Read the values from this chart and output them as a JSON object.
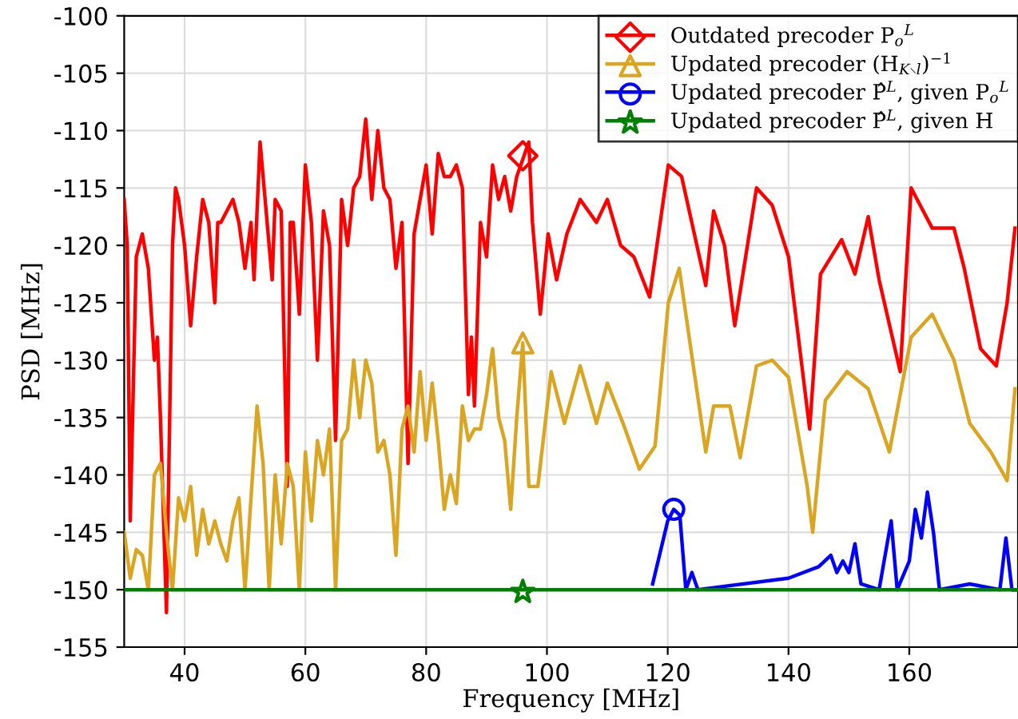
{
  "chart_data": {
    "type": "line",
    "xlabel": "Frequency [MHz]",
    "ylabel": "PSD [MHz]",
    "xlim": [
      30,
      178
    ],
    "ylim": [
      -155,
      -100
    ],
    "xticks": [
      40,
      60,
      80,
      100,
      120,
      140,
      160
    ],
    "yticks": [
      -155,
      -150,
      -145,
      -140,
      -135,
      -130,
      -125,
      -120,
      -115,
      -110,
      -105,
      -100
    ],
    "grid": true,
    "legend": "top right",
    "line_style": "solid",
    "series": [
      {
        "name": "Outdated precoder P$_{o}$$^{L}$",
        "color": "#ff0000",
        "x": [
          30,
          30.5,
          31,
          32,
          33,
          34,
          35,
          35.5,
          36,
          37,
          38,
          38.5,
          39,
          40,
          41,
          42,
          43,
          44,
          45,
          45.5,
          46,
          47,
          48,
          49,
          50,
          51,
          51.5,
          52.5,
          53.5,
          54.5,
          55,
          56,
          57,
          57.5,
          58,
          59,
          60,
          61,
          62,
          63,
          64,
          65,
          66,
          67,
          68,
          69,
          70,
          71,
          72,
          73,
          74,
          75,
          76,
          77,
          78,
          79,
          80,
          81,
          82,
          83,
          84,
          85,
          86,
          87,
          87.5,
          88,
          89,
          90,
          91,
          92,
          93,
          94,
          95,
          96,
          97,
          97.6,
          98.9,
          100.2,
          101.6,
          103.3,
          105.5,
          108.2,
          110,
          112.2,
          114.4,
          117,
          120.1,
          122.3,
          126.3,
          127.6,
          129.4,
          131.1,
          134.7,
          137.3,
          140,
          143.5,
          145.3,
          148.8,
          151,
          153.2,
          155,
          158.5,
          160.3,
          163.8,
          167.4,
          169.1,
          171.8,
          174.4,
          176.2,
          177.5
        ],
        "values": [
          -116,
          -120,
          -144,
          -121,
          -119,
          -122,
          -130,
          -128,
          -135,
          -152,
          -120,
          -115,
          -116,
          -120,
          -127,
          -121,
          -116,
          -118,
          -125,
          -118,
          -118,
          -117,
          -116,
          -118,
          -122,
          -118,
          -123,
          -111,
          -117,
          -123,
          -116,
          -117,
          -141,
          -118,
          -118,
          -126,
          -113,
          -118,
          -130,
          -117,
          -120,
          -137,
          -116,
          -120,
          -115,
          -114,
          -109,
          -116,
          -110,
          -115,
          -116,
          -122,
          -118,
          -139,
          -119,
          -116,
          -113,
          -119,
          -112,
          -114,
          -114,
          -113,
          -115,
          -133,
          -128,
          -134,
          -118,
          -121,
          -113,
          -116,
          -114,
          -117,
          -114,
          -112.5,
          -111,
          -118,
          -126,
          -119,
          -123,
          -119,
          -116,
          -118,
          -116,
          -120,
          -121,
          -124.5,
          -113,
          -114,
          -123.5,
          -117,
          -120,
          -127,
          -115,
          -116.5,
          -121,
          -136,
          -122.5,
          -119.5,
          -122.5,
          -117.5,
          -123,
          -131,
          -115,
          -118.5,
          -118.5,
          -122,
          -129,
          -130.5,
          -125,
          -118.5
        ]
      },
      {
        "name": "Updated precoder (H$_{K∖l}$)$^{−1}$",
        "color": "#daa520",
        "x": [
          30,
          31,
          32,
          33,
          34,
          35,
          36,
          37,
          38,
          39,
          40,
          41,
          42,
          43,
          44,
          45,
          46,
          47,
          48,
          49,
          50,
          52,
          53,
          54,
          55,
          56,
          57,
          58,
          59,
          60,
          61,
          62,
          63,
          64,
          65,
          66,
          67,
          68,
          69,
          70,
          71,
          72,
          73,
          74,
          75,
          76,
          77,
          78,
          79,
          80,
          81,
          82,
          83,
          84,
          85,
          86,
          87,
          88,
          89,
          90,
          91,
          92,
          93,
          94,
          95,
          96,
          97,
          98.5,
          100.7,
          102.9,
          105.5,
          108.2,
          110,
          112.6,
          115.3,
          117.9,
          120.1,
          121.9,
          124.1,
          126.3,
          127.6,
          130.3,
          132,
          134.7,
          137.3,
          140,
          143.1,
          144,
          146.1,
          149.7,
          153.2,
          156.7,
          160.3,
          163.8,
          167.4,
          170,
          173.5,
          176.2,
          177.5
        ],
        "values": [
          -145,
          -149,
          -146.5,
          -147,
          -150,
          -140,
          -139,
          -145,
          -150,
          -142,
          -144,
          -141,
          -147,
          -143,
          -146,
          -144,
          -146,
          -147.5,
          -144,
          -142,
          -150,
          -134,
          -139,
          -150,
          -140,
          -146,
          -139,
          -141,
          -150,
          -138,
          -144,
          -137,
          -140,
          -136,
          -150,
          -137,
          -136,
          -130,
          -135,
          -130,
          -132,
          -138,
          -137,
          -140,
          -147,
          -136,
          -134,
          -138,
          -131,
          -137,
          -132,
          -137,
          -143,
          -140,
          -142.5,
          -134,
          -137,
          -136,
          -136,
          -133,
          -129,
          -135,
          -137,
          -143,
          -135,
          -128.5,
          -141,
          -141,
          -131,
          -135.5,
          -130.5,
          -135.5,
          -132,
          -135.5,
          -139.5,
          -137.5,
          -125,
          -122,
          -130,
          -138,
          -134,
          -134,
          -138.5,
          -130.5,
          -130,
          -131.5,
          -141,
          -145,
          -133.5,
          -131,
          -132.5,
          -138,
          -128,
          -126,
          -130,
          -135.5,
          -138,
          -140.5,
          -132.5
        ]
      },
      {
        "name": "Updated precoder P̂$^{L}$, given P$_{o}$$^{L}$",
        "color": "#0000ff",
        "x": [
          117.5,
          120,
          121,
          122,
          123,
          124,
          125,
          140,
          145,
          147,
          148,
          149,
          150,
          151,
          152,
          155,
          157,
          158,
          160,
          161,
          162,
          163,
          164,
          165,
          170,
          175,
          176,
          177,
          178
        ],
        "values": [
          -149.5,
          -144,
          -143,
          -143.5,
          -150,
          -148.5,
          -150,
          -149,
          -148,
          -147,
          -148.5,
          -147.5,
          -148.5,
          -146,
          -149.5,
          -150,
          -144,
          -150,
          -147.5,
          -143,
          -145.5,
          -141.5,
          -145,
          -150,
          -149.5,
          -150,
          -145.5,
          -150,
          -150
        ]
      },
      {
        "name": "Updated precoder P̂$^{L}$, given H",
        "color": "#008000",
        "x": [
          30,
          178
        ],
        "values": [
          -150,
          -150
        ]
      },
      {
        "type": "scatter",
        "color": "#ff0000",
        "marker": "diamond",
        "x": [
          96
        ],
        "values": [
          -112.2
        ]
      },
      {
        "type": "scatter",
        "color": "#daa520",
        "marker": "triangle",
        "x": [
          96
        ],
        "values": [
          -128.5
        ]
      },
      {
        "type": "scatter",
        "color": "#0000ff",
        "marker": "circle",
        "x": [
          121
        ],
        "values": [
          -143
        ]
      },
      {
        "type": "scatter",
        "color": "#008000",
        "marker": "star",
        "x": [
          96
        ],
        "values": [
          -150.2
        ]
      }
    ]
  }
}
